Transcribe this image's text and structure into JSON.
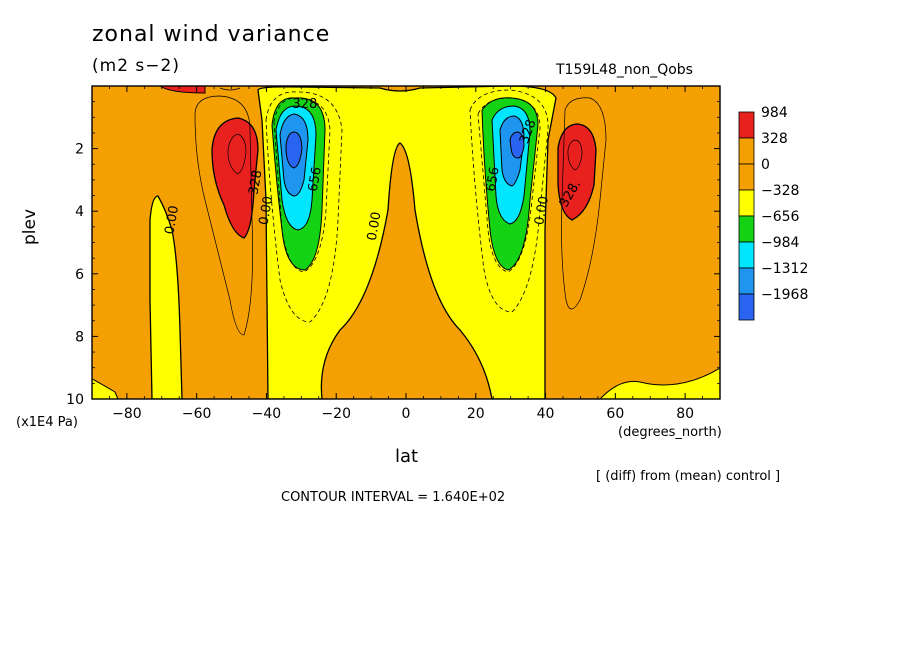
{
  "header": {
    "title": "zonal wind variance",
    "units": "(m2 s−2)",
    "run": "T159L48_non_Qobs"
  },
  "footer": {
    "note": "[ (diff) from (mean) control ]",
    "contour_interval": "CONTOUR INTERVAL = 1.640E+02"
  },
  "chart_data": {
    "type": "heatmap",
    "title": "zonal wind variance",
    "xlabel": "lat",
    "x_units": "(degrees_north)",
    "ylabel": "plev",
    "y_units": "(x1E4 Pa)",
    "xlim": [
      -90,
      90
    ],
    "ylim": [
      10,
      0
    ],
    "x_ticks": [
      -80,
      -60,
      -40,
      -20,
      0,
      20,
      40,
      60,
      80
    ],
    "y_ticks": [
      2,
      4,
      6,
      8,
      10
    ],
    "x_tick_labels": [
      "−80",
      "−60",
      "−40",
      "−20",
      "0",
      "20",
      "40",
      "60",
      "80"
    ],
    "y_tick_labels": [
      "2",
      "4",
      "6",
      "8",
      "10"
    ],
    "colorbar": {
      "levels": [
        "984",
        "328",
        "0",
        "−328",
        "−656",
        "−984",
        "−1312",
        "−1968"
      ],
      "colors": [
        "#e8201e",
        "#f5a002",
        "#f5a002",
        "#ffff00",
        "#14d214",
        "#00e6ff",
        "#1e96f0",
        "#2864f0"
      ]
    },
    "contour_interval": 164,
    "features": [
      {
        "kind": "max",
        "lat": -48,
        "plev": 2.3,
        "value": 984
      },
      {
        "kind": "min",
        "lat": -32,
        "plev": 2.1,
        "value": -1968
      },
      {
        "kind": "min",
        "lat": 32,
        "plev": 2.0,
        "value": -1968
      },
      {
        "kind": "max",
        "lat": 48,
        "plev": 2.3,
        "value": 984
      }
    ],
    "contour_labels": [
      {
        "text": "328",
        "lat": -29,
        "plev": 0.7,
        "rot": 0
      },
      {
        "text": "328",
        "lat": -42,
        "plev": 3.1,
        "rot": -80
      },
      {
        "text": "656",
        "lat": -25,
        "plev": 3.0,
        "rot": -80
      },
      {
        "text": "0.00",
        "lat": -39,
        "plev": 4.0,
        "rot": -80
      },
      {
        "text": "0.00",
        "lat": -66,
        "plev": 4.3,
        "rot": -80
      },
      {
        "text": "0.00",
        "lat": -8,
        "plev": 4.5,
        "rot": -80
      },
      {
        "text": "656",
        "lat": 26,
        "plev": 3.0,
        "rot": -80
      },
      {
        "text": "328",
        "lat": 36,
        "plev": 1.5,
        "rot": -70
      },
      {
        "text": "0.00",
        "lat": 40,
        "plev": 4.0,
        "rot": -80
      },
      {
        "text": "328.",
        "lat": 48,
        "plev": 3.5,
        "rot": -60
      }
    ]
  }
}
